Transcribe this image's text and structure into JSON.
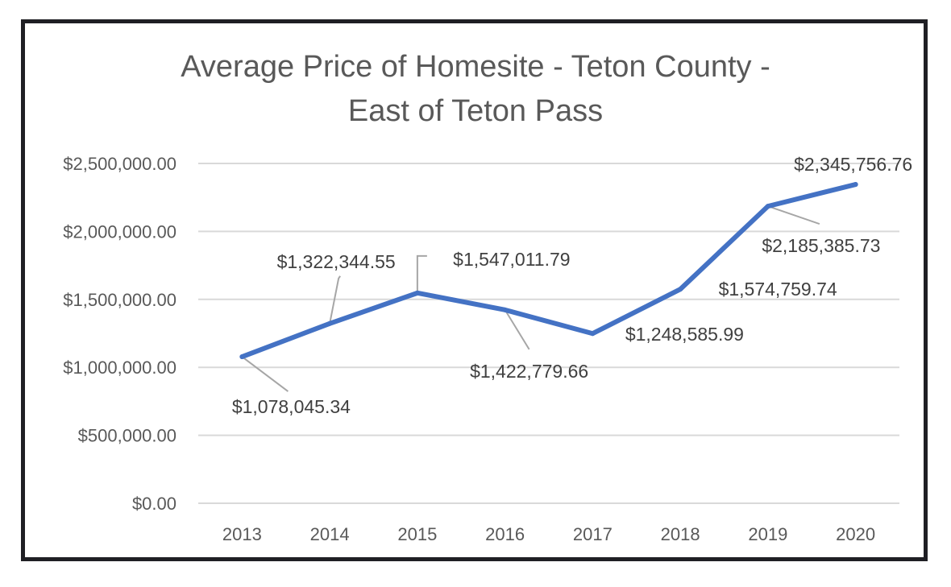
{
  "chart_data": {
    "type": "line",
    "title": "Average Price of Homesite - Teton County -",
    "title_line2": "East of Teton Pass",
    "xlabel": "",
    "ylabel": "",
    "categories": [
      "2013",
      "2014",
      "2015",
      "2016",
      "2017",
      "2018",
      "2019",
      "2020"
    ],
    "series": [
      {
        "values": [
          1078045.34,
          1322344.55,
          1547011.79,
          1422779.66,
          1248585.99,
          1574759.74,
          2185385.73,
          2345756.76
        ],
        "data_labels": [
          "$1,078,045.34",
          "$1,322,344.55",
          "$1,547,011.79",
          "$1,422,779.66",
          "$1,248,585.99",
          "$1,574,759.74",
          "$2,185,385.73",
          "$2,345,756.76"
        ]
      }
    ],
    "ylim": [
      0,
      2500000
    ],
    "y_ticks": [
      "$0.00",
      "$500,000.00",
      "$1,000,000.00",
      "$1,500,000.00",
      "$2,000,000.00",
      "$2,500,000.00"
    ],
    "grid": true,
    "legend": "none",
    "colors": {
      "line": "#4472c4",
      "grid": "#d9d9d9",
      "text": "#595959",
      "leader": "#a6a6a6",
      "frame": "#1f1f24"
    }
  }
}
